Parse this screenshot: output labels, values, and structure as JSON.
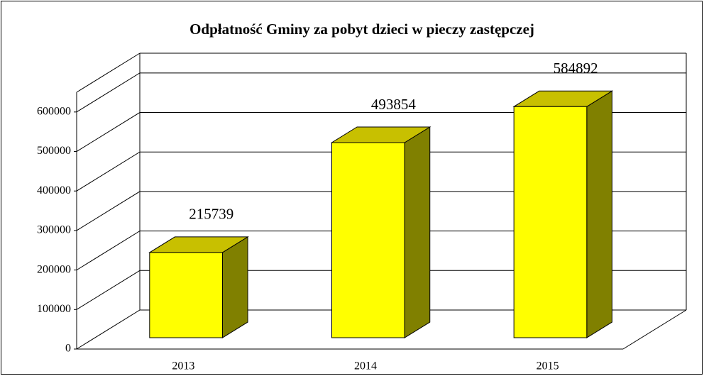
{
  "chart_data": {
    "type": "bar3d",
    "title": "Odpłatność Gminy za pobyt dzieci w pieczy zastępczej",
    "categories": [
      "2013",
      "2014",
      "2015"
    ],
    "values": [
      215739,
      493854,
      584892
    ],
    "color": "#ffff00",
    "top_color": "#c8c000",
    "side_color": "#808000",
    "ylim": [
      0,
      650000
    ],
    "yticks": [
      0,
      100000,
      200000,
      300000,
      400000,
      500000,
      600000
    ],
    "grid": true
  }
}
